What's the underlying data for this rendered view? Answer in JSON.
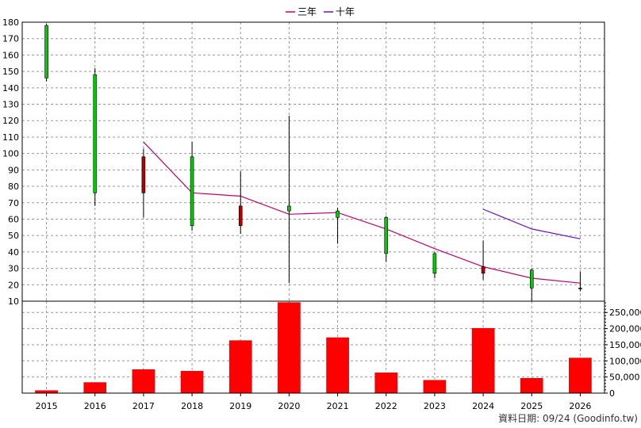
{
  "chart_data": [
    {
      "type": "candlestick",
      "years": [
        "2015",
        "2016",
        "2017",
        "2018",
        "2019",
        "2020",
        "2021",
        "2022",
        "2023",
        "2024",
        "2025",
        "2026"
      ],
      "ohlc": [
        {
          "open": 178,
          "high": 179,
          "low": 144,
          "close": 146
        },
        {
          "open": 148,
          "high": 152,
          "low": 68,
          "close": 76
        },
        {
          "open": 76,
          "high": 103,
          "low": 61,
          "close": 98
        },
        {
          "open": 98,
          "high": 107,
          "low": 53,
          "close": 56
        },
        {
          "open": 56,
          "high": 89,
          "low": 51,
          "close": 68
        },
        {
          "open": 68,
          "high": 123,
          "low": 21,
          "close": 65
        },
        {
          "open": 65,
          "high": 67,
          "low": 45,
          "close": 61
        },
        {
          "open": 61,
          "high": 62,
          "low": 34,
          "close": 39
        },
        {
          "open": 39,
          "high": 40,
          "low": 24,
          "close": 27
        },
        {
          "open": 27,
          "high": 47,
          "low": 23,
          "close": 31
        },
        {
          "open": 29,
          "high": 30,
          "low": 10,
          "close": 18
        },
        {
          "open": 18,
          "high": 28,
          "low": 16,
          "close": 18
        }
      ],
      "rising_color": "#b00000",
      "falling_color": "#00cc00",
      "series": [
        {
          "name": "三年",
          "color": "#c0006e",
          "values": [
            null,
            null,
            107,
            76,
            74,
            63,
            64,
            54,
            42,
            31,
            24,
            21
          ]
        },
        {
          "name": "十年",
          "color": "#6a10c0",
          "values": [
            null,
            null,
            null,
            null,
            null,
            null,
            null,
            null,
            null,
            66,
            54,
            48
          ]
        }
      ],
      "yticks": [
        "10",
        "20",
        "30",
        "40",
        "50",
        "60",
        "70",
        "80",
        "90",
        "100",
        "110",
        "120",
        "130",
        "140",
        "150",
        "160",
        "170",
        "180"
      ],
      "ylim": [
        10,
        180
      ],
      "grid": true,
      "legend": "top-center"
    },
    {
      "type": "bar",
      "years": [
        "2015",
        "2016",
        "2017",
        "2018",
        "2019",
        "2020",
        "2021",
        "2022",
        "2023",
        "2024",
        "2025",
        "2026"
      ],
      "values": [
        8000,
        33000,
        73000,
        68000,
        163000,
        281000,
        172000,
        63000,
        40000,
        201000,
        46000,
        109000
      ],
      "color": "#ff0000",
      "yticks": [
        "0",
        "50,000",
        "100,000",
        "150,000",
        "200,000",
        "250,000"
      ],
      "ylim": [
        0,
        285000
      ],
      "grid": true
    }
  ],
  "footer": {
    "source": "資料日期: 09/24  (Goodinfo.tw)"
  }
}
